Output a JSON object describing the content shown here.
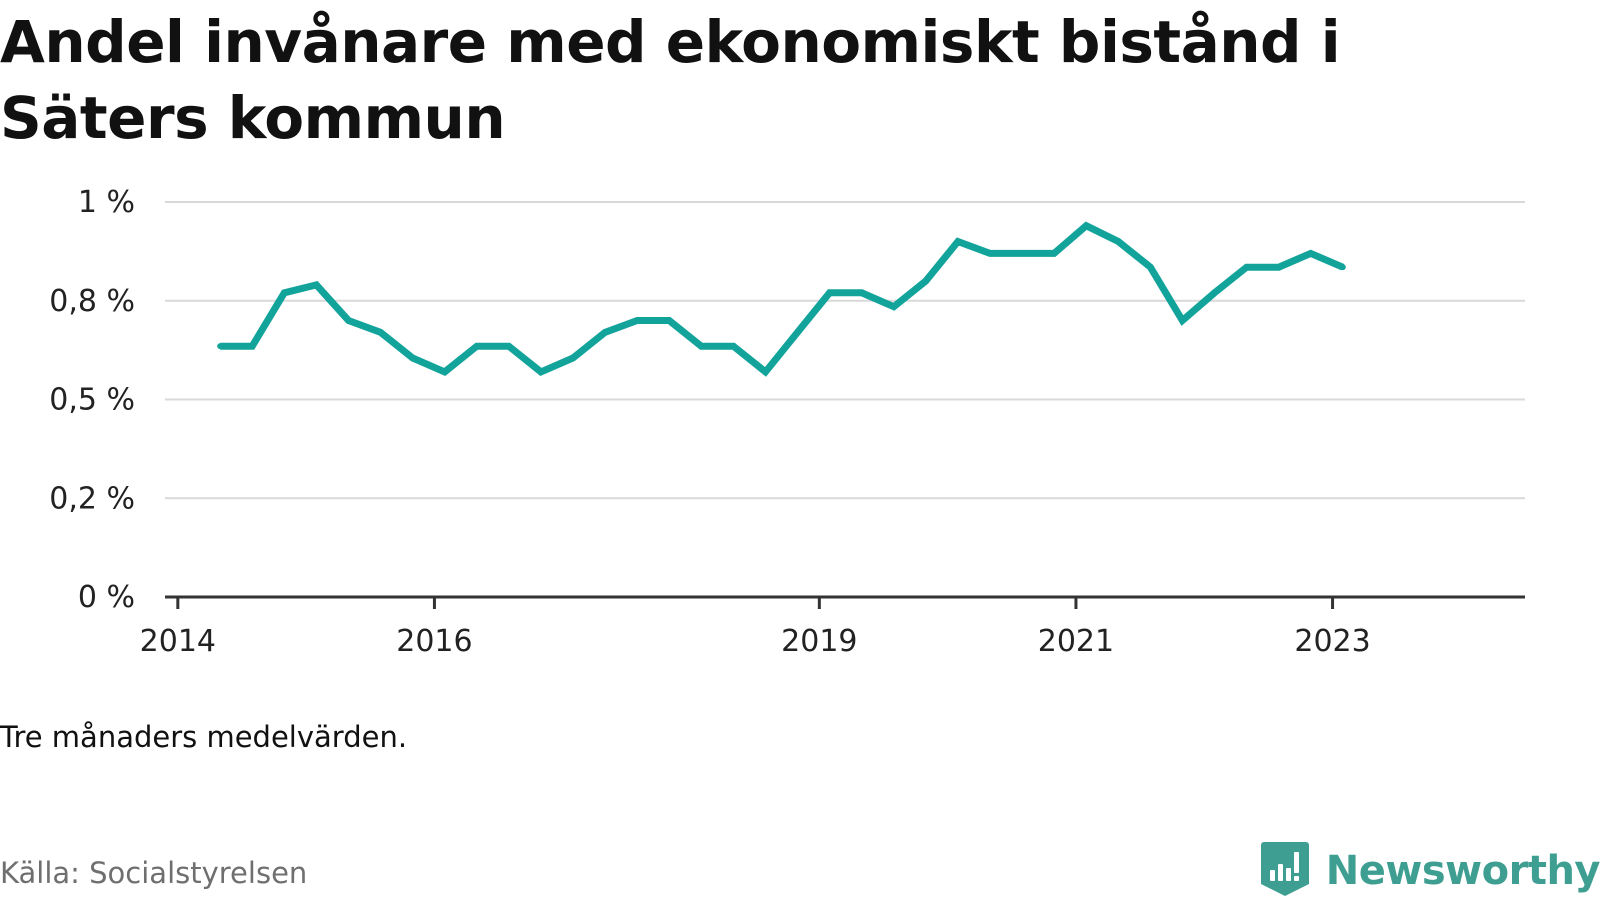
{
  "title": "Andel invånare med ekonomiskt bistånd i Säters kommun",
  "note": "Tre månaders medelvärden.",
  "source": "Källa: Socialstyrelsen",
  "brand": {
    "name": "Newsworthy",
    "icon": "bar-chart-flag-icon",
    "color": "#3f9e92"
  },
  "chart_data": {
    "type": "line",
    "title": "Andel invånare med ekonomiskt bistånd i Säters kommun",
    "xlabel": "",
    "ylabel": "",
    "y_ticks": [
      {
        "value": 0,
        "label": "0 %"
      },
      {
        "value": 0.25,
        "label": "0,2 %"
      },
      {
        "value": 0.5,
        "label": "0,5 %"
      },
      {
        "value": 0.75,
        "label": "0,8 %"
      },
      {
        "value": 1.0,
        "label": "1 %"
      }
    ],
    "x_ticks": [
      {
        "value": 2014.0,
        "label": "2014"
      },
      {
        "value": 2016.0,
        "label": "2016"
      },
      {
        "value": 2019.0,
        "label": "2019"
      },
      {
        "value": 2021.0,
        "label": "2021"
      },
      {
        "value": 2023.0,
        "label": "2023"
      }
    ],
    "xlim": [
      2013.9,
      2024.5
    ],
    "ylim": [
      0,
      1.0
    ],
    "grid": true,
    "line_color": "#12a39a",
    "series": [
      {
        "x": [
          2014.33,
          2014.58,
          2014.83,
          2015.08,
          2015.33,
          2015.58,
          2015.83,
          2016.08,
          2016.33,
          2016.58,
          2016.83,
          2017.08,
          2017.33,
          2017.58,
          2017.83,
          2018.08,
          2018.33,
          2018.58,
          2018.83,
          2019.08,
          2019.33,
          2019.58,
          2019.83,
          2020.08,
          2020.33,
          2020.58,
          2020.83,
          2021.08,
          2021.33,
          2021.58,
          2021.83,
          2022.08,
          2022.33,
          2022.58,
          2022.83,
          2023.08
        ],
        "values": [
          0.635,
          0.635,
          0.77,
          0.79,
          0.7,
          0.67,
          0.605,
          0.57,
          0.635,
          0.635,
          0.57,
          0.605,
          0.67,
          0.7,
          0.7,
          0.635,
          0.635,
          0.57,
          0.67,
          0.77,
          0.77,
          0.735,
          0.8,
          0.9,
          0.87,
          0.87,
          0.87,
          0.94,
          0.9,
          0.835,
          0.7,
          0.77,
          0.835,
          0.835,
          0.87,
          0.835
        ]
      }
    ]
  }
}
